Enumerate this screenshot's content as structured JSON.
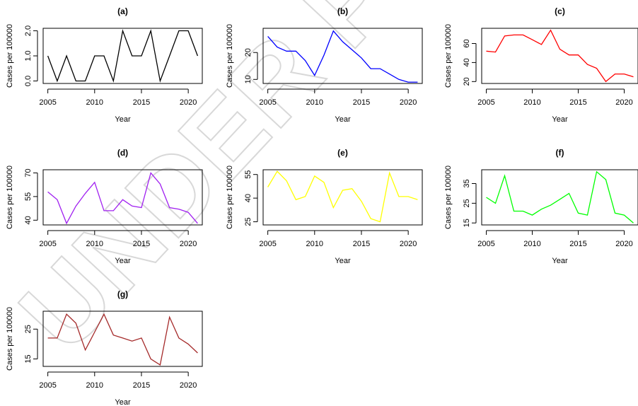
{
  "watermark": {
    "text": "UNDER PEER",
    "color": "#e6e6e6"
  },
  "chart_data": [
    {
      "type": "line",
      "title": "(a)",
      "xlabel": "Year",
      "ylabel": "Cases per 100000",
      "color": "#000000",
      "xlim": [
        2004.5,
        2021.5
      ],
      "xticks": [
        2005,
        2010,
        2015,
        2020
      ],
      "ylim": [
        -0.1,
        2.1
      ],
      "yticks": [
        0.0,
        1.0,
        2.0
      ],
      "ytick_labels": [
        "0.0",
        "1.0",
        "2.0"
      ],
      "x": [
        2005,
        2006,
        2007,
        2008,
        2009,
        2010,
        2011,
        2012,
        2013,
        2014,
        2015,
        2016,
        2017,
        2018,
        2019,
        2020,
        2021
      ],
      "values": [
        1,
        0,
        1,
        0,
        0,
        1,
        1,
        0,
        2,
        1,
        1,
        2,
        0,
        1,
        2,
        2,
        1
      ]
    },
    {
      "type": "line",
      "title": "(b)",
      "xlabel": "Year",
      "ylabel": "Cases per 100000",
      "color": "#0000ff",
      "xlim": [
        2004.5,
        2021.5
      ],
      "xticks": [
        2005,
        2010,
        2015,
        2020
      ],
      "ylim": [
        8.5,
        29
      ],
      "yticks": [
        10,
        20
      ],
      "ytick_labels": [
        "10",
        "20"
      ],
      "x": [
        2005,
        2006,
        2007,
        2008,
        2009,
        2010,
        2011,
        2012,
        2013,
        2014,
        2015,
        2016,
        2017,
        2018,
        2019,
        2020,
        2021
      ],
      "values": [
        26,
        22,
        20.5,
        20.5,
        17,
        11.5,
        19,
        28,
        24,
        21,
        18,
        14,
        14,
        12,
        10,
        9,
        9
      ]
    },
    {
      "type": "line",
      "title": "(c)",
      "xlabel": "Year",
      "ylabel": "Cases per 100000",
      "color": "#ff0000",
      "xlim": [
        2004.5,
        2021.5
      ],
      "xticks": [
        2005,
        2010,
        2015,
        2020
      ],
      "ylim": [
        18,
        76
      ],
      "yticks": [
        20,
        40,
        60
      ],
      "ytick_labels": [
        "20",
        "40",
        "60"
      ],
      "x": [
        2005,
        2006,
        2007,
        2008,
        2009,
        2010,
        2011,
        2012,
        2013,
        2014,
        2015,
        2016,
        2017,
        2018,
        2019,
        2020,
        2021
      ],
      "values": [
        52,
        51,
        68,
        69,
        69,
        64,
        59,
        74,
        54,
        48,
        48,
        38,
        34,
        20,
        28,
        28,
        25
      ]
    },
    {
      "type": "line",
      "title": "(d)",
      "xlabel": "Year",
      "ylabel": "Cases per 100000",
      "color": "#a020f0",
      "xlim": [
        2004.5,
        2021.5
      ],
      "xticks": [
        2005,
        2010,
        2015,
        2020
      ],
      "ylim": [
        37,
        72
      ],
      "yticks": [
        40,
        55,
        70
      ],
      "ytick_labels": [
        "40",
        "55",
        "70"
      ],
      "x": [
        2005,
        2006,
        2007,
        2008,
        2009,
        2010,
        2011,
        2012,
        2013,
        2014,
        2015,
        2016,
        2017,
        2018,
        2019,
        2020,
        2021
      ],
      "values": [
        58,
        53,
        38,
        49,
        57,
        64,
        46,
        46,
        53,
        49,
        48,
        70,
        63,
        48,
        47,
        45,
        38
      ]
    },
    {
      "type": "line",
      "title": "(e)",
      "xlabel": "Year",
      "ylabel": "Cases per 100000",
      "color": "#ffff00",
      "xlim": [
        2004.5,
        2021.5
      ],
      "xticks": [
        2005,
        2010,
        2015,
        2020
      ],
      "ylim": [
        23,
        58
      ],
      "yticks": [
        25,
        40,
        55
      ],
      "ytick_labels": [
        "25",
        "40",
        "55"
      ],
      "x": [
        2005,
        2006,
        2007,
        2008,
        2009,
        2010,
        2011,
        2012,
        2013,
        2014,
        2015,
        2016,
        2017,
        2018,
        2019,
        2020,
        2021
      ],
      "values": [
        47,
        57,
        51,
        39,
        41,
        54,
        50,
        34,
        45,
        46,
        38,
        27,
        25,
        56,
        41,
        41,
        39
      ]
    },
    {
      "type": "line",
      "title": "(f)",
      "xlabel": "Year",
      "ylabel": "Cases per 100000",
      "color": "#00ff00",
      "xlim": [
        2004.5,
        2021.5
      ],
      "xticks": [
        2005,
        2010,
        2015,
        2020
      ],
      "ylim": [
        14,
        42
      ],
      "yticks": [
        15,
        25,
        35
      ],
      "ytick_labels": [
        "15",
        "25",
        "35"
      ],
      "x": [
        2005,
        2006,
        2007,
        2008,
        2009,
        2010,
        2011,
        2012,
        2013,
        2014,
        2015,
        2016,
        2017,
        2018,
        2019,
        2020,
        2021
      ],
      "values": [
        28,
        25,
        39,
        21,
        21,
        19,
        22,
        24,
        27,
        30,
        20,
        19,
        41,
        37,
        20,
        19,
        15
      ]
    },
    {
      "type": "line",
      "title": "(g)",
      "xlabel": "Year",
      "ylabel": "Cases per 100000",
      "color": "#a52a2a",
      "xlim": [
        2004.5,
        2021.5
      ],
      "xticks": [
        2005,
        2010,
        2015,
        2020
      ],
      "ylim": [
        12.5,
        31
      ],
      "yticks": [
        15,
        25
      ],
      "ytick_labels": [
        "15",
        "25"
      ],
      "x": [
        2005,
        2006,
        2007,
        2008,
        2009,
        2010,
        2011,
        2012,
        2013,
        2014,
        2015,
        2016,
        2017,
        2018,
        2019,
        2020,
        2021
      ],
      "values": [
        22,
        22,
        30,
        27,
        18,
        24,
        30,
        23,
        22,
        21,
        22,
        15,
        13,
        29,
        22,
        20,
        17
      ]
    }
  ]
}
